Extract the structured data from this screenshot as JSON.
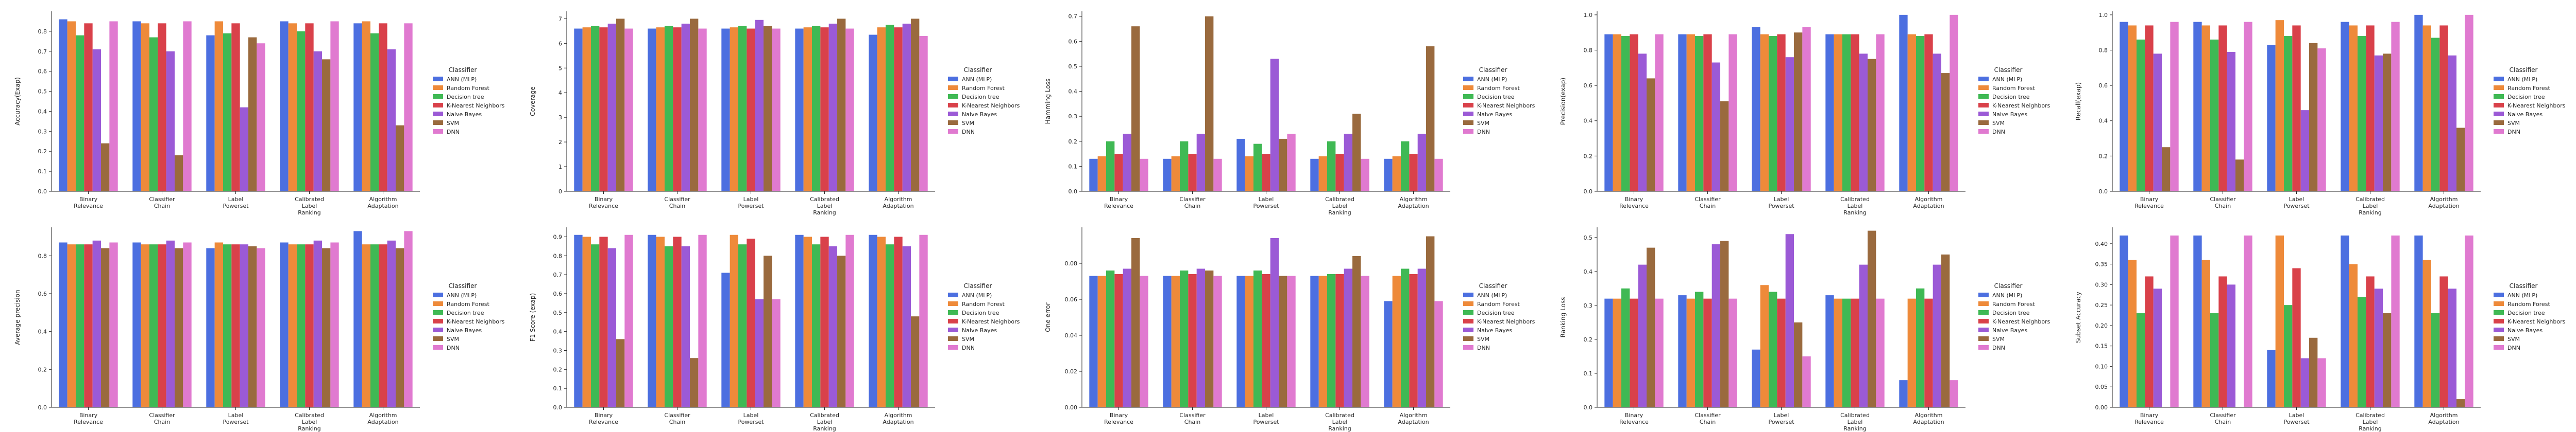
{
  "palette": [
    "#4c6fe0",
    "#ee8a3a",
    "#3fb954",
    "#d9414a",
    "#9b5ad6",
    "#9a6a3e",
    "#e07ad0"
  ],
  "legend": {
    "title": "Classifier",
    "labels": [
      "ANN (MLP)",
      "Random Forest",
      "Decision tree",
      "K-Nearest Neighbors",
      "Naive Bayes",
      "SVM",
      "DNN"
    ]
  },
  "chart_data": [
    {
      "type": "bar",
      "ylabel": "Accuracy(Exap)",
      "ylim": [
        0,
        0.9
      ],
      "yticks": [
        0.0,
        0.1,
        0.2,
        0.3,
        0.4,
        0.5,
        0.6,
        0.7,
        0.8
      ],
      "categories": [
        [
          "Binary",
          "Relevance"
        ],
        [
          "Classifier",
          "Chain"
        ],
        [
          "Label",
          "Powerset"
        ],
        [
          "Calibrated",
          "Label",
          "Ranking"
        ],
        [
          "Algorithm",
          "Adaptation"
        ]
      ],
      "values": [
        [
          0.86,
          0.85,
          0.78,
          0.84,
          0.71,
          0.24,
          0.85
        ],
        [
          0.85,
          0.84,
          0.77,
          0.84,
          0.7,
          0.18,
          0.85
        ],
        [
          0.78,
          0.85,
          0.79,
          0.84,
          0.42,
          0.77,
          0.74
        ],
        [
          0.85,
          0.84,
          0.8,
          0.84,
          0.7,
          0.66,
          0.85
        ],
        [
          0.84,
          0.85,
          0.79,
          0.84,
          0.71,
          0.33,
          0.84
        ]
      ]
    },
    {
      "type": "bar",
      "ylabel": "Coverage",
      "ylim": [
        0,
        7.3
      ],
      "yticks": [
        0,
        1,
        2,
        3,
        4,
        5,
        6,
        7
      ],
      "categories": [
        [
          "Binary",
          "Relevance"
        ],
        [
          "Classifier",
          "Chain"
        ],
        [
          "Label",
          "Powerset"
        ],
        [
          "Calibrated",
          "Label",
          "Ranking"
        ],
        [
          "Algorithm",
          "Adaptation"
        ]
      ],
      "values": [
        [
          6.6,
          6.65,
          6.7,
          6.65,
          6.8,
          7.0,
          6.6
        ],
        [
          6.6,
          6.65,
          6.7,
          6.65,
          6.8,
          7.0,
          6.6
        ],
        [
          6.6,
          6.65,
          6.7,
          6.6,
          6.95,
          6.7,
          6.6
        ],
        [
          6.6,
          6.65,
          6.7,
          6.65,
          6.8,
          7.0,
          6.6
        ],
        [
          6.35,
          6.65,
          6.75,
          6.65,
          6.8,
          7.0,
          6.3
        ]
      ]
    },
    {
      "type": "bar",
      "ylabel": "Hamming Loss",
      "ylim": [
        0,
        0.72
      ],
      "yticks": [
        0.0,
        0.1,
        0.2,
        0.3,
        0.4,
        0.5,
        0.6,
        0.7
      ],
      "categories": [
        [
          "Binary",
          "Relevance"
        ],
        [
          "Classifier",
          "Chain"
        ],
        [
          "Label",
          "Powerset"
        ],
        [
          "Calibrated",
          "Label",
          "Ranking"
        ],
        [
          "Algorithm",
          "Adaptation"
        ]
      ],
      "values": [
        [
          0.13,
          0.14,
          0.2,
          0.15,
          0.23,
          0.66,
          0.13
        ],
        [
          0.13,
          0.14,
          0.2,
          0.15,
          0.23,
          0.7,
          0.13
        ],
        [
          0.21,
          0.14,
          0.19,
          0.15,
          0.53,
          0.21,
          0.23
        ],
        [
          0.13,
          0.14,
          0.2,
          0.15,
          0.23,
          0.31,
          0.13
        ],
        [
          0.13,
          0.14,
          0.2,
          0.15,
          0.23,
          0.58,
          0.13
        ]
      ]
    },
    {
      "type": "bar",
      "ylabel": "Precision(exap)",
      "ylim": [
        0,
        1.02
      ],
      "yticks": [
        0.0,
        0.2,
        0.4,
        0.6,
        0.8,
        1.0
      ],
      "categories": [
        [
          "Binary",
          "Relevance"
        ],
        [
          "Classifier",
          "Chain"
        ],
        [
          "Label",
          "Powerset"
        ],
        [
          "Calibrated",
          "Label",
          "Ranking"
        ],
        [
          "Algorithm",
          "Adaptation"
        ]
      ],
      "values": [
        [
          0.89,
          0.89,
          0.88,
          0.89,
          0.78,
          0.64,
          0.89
        ],
        [
          0.89,
          0.89,
          0.88,
          0.89,
          0.73,
          0.51,
          0.89
        ],
        [
          0.93,
          0.89,
          0.88,
          0.89,
          0.76,
          0.9,
          0.93
        ],
        [
          0.89,
          0.89,
          0.89,
          0.89,
          0.78,
          0.75,
          0.89
        ],
        [
          1.0,
          0.89,
          0.88,
          0.89,
          0.78,
          0.67,
          1.0
        ]
      ]
    },
    {
      "type": "bar",
      "ylabel": "Recall(exap)",
      "ylim": [
        0,
        1.02
      ],
      "yticks": [
        0.0,
        0.2,
        0.4,
        0.6,
        0.8,
        1.0
      ],
      "categories": [
        [
          "Binary",
          "Relevance"
        ],
        [
          "Classifier",
          "Chain"
        ],
        [
          "Label",
          "Powerset"
        ],
        [
          "Calibrated",
          "Label",
          "Ranking"
        ],
        [
          "Algorithm",
          "Adaptation"
        ]
      ],
      "values": [
        [
          0.96,
          0.94,
          0.86,
          0.94,
          0.78,
          0.25,
          0.96
        ],
        [
          0.96,
          0.94,
          0.86,
          0.94,
          0.79,
          0.18,
          0.96
        ],
        [
          0.83,
          0.97,
          0.88,
          0.94,
          0.46,
          0.84,
          0.81
        ],
        [
          0.96,
          0.94,
          0.88,
          0.94,
          0.77,
          0.78,
          0.96
        ],
        [
          1.0,
          0.94,
          0.87,
          0.94,
          0.77,
          0.36,
          1.0
        ]
      ]
    },
    {
      "type": "bar",
      "ylabel": "Average precision",
      "ylim": [
        0,
        0.95
      ],
      "yticks": [
        0.0,
        0.2,
        0.4,
        0.6,
        0.8
      ],
      "categories": [
        [
          "Binary",
          "Relevance"
        ],
        [
          "Classifier",
          "Chain"
        ],
        [
          "Label",
          "Powerset"
        ],
        [
          "Calibrated",
          "Label",
          "Ranking"
        ],
        [
          "Algorithm",
          "Adaptation"
        ]
      ],
      "values": [
        [
          0.87,
          0.86,
          0.86,
          0.86,
          0.88,
          0.84,
          0.87
        ],
        [
          0.87,
          0.86,
          0.86,
          0.86,
          0.88,
          0.84,
          0.87
        ],
        [
          0.84,
          0.87,
          0.86,
          0.86,
          0.86,
          0.85,
          0.84
        ],
        [
          0.87,
          0.86,
          0.86,
          0.86,
          0.88,
          0.84,
          0.87
        ],
        [
          0.93,
          0.86,
          0.86,
          0.86,
          0.88,
          0.84,
          0.93
        ]
      ]
    },
    {
      "type": "bar",
      "ylabel": "F1 Score (exap)",
      "ylim": [
        0,
        0.95
      ],
      "yticks": [
        0.0,
        0.1,
        0.2,
        0.3,
        0.4,
        0.5,
        0.6,
        0.7,
        0.8,
        0.9
      ],
      "categories": [
        [
          "Binary",
          "Relevance"
        ],
        [
          "Classifier",
          "Chain"
        ],
        [
          "Label",
          "Powerset"
        ],
        [
          "Calibrated",
          "Label",
          "Ranking"
        ],
        [
          "Algorithm",
          "Adaptation"
        ]
      ],
      "values": [
        [
          0.91,
          0.9,
          0.86,
          0.9,
          0.84,
          0.36,
          0.91
        ],
        [
          0.91,
          0.9,
          0.85,
          0.9,
          0.85,
          0.26,
          0.91
        ],
        [
          0.71,
          0.91,
          0.86,
          0.89,
          0.57,
          0.8,
          0.57
        ],
        [
          0.91,
          0.9,
          0.86,
          0.9,
          0.85,
          0.8,
          0.91
        ],
        [
          0.91,
          0.9,
          0.86,
          0.9,
          0.85,
          0.48,
          0.91
        ]
      ]
    },
    {
      "type": "bar",
      "ylabel": "One error",
      "ylim": [
        0,
        0.1
      ],
      "yticks": [
        0.0,
        0.02,
        0.04,
        0.06,
        0.08
      ],
      "categories": [
        [
          "Binary",
          "Relevance"
        ],
        [
          "Classifier",
          "Chain"
        ],
        [
          "Label",
          "Powerset"
        ],
        [
          "Calibrated",
          "Label",
          "Ranking"
        ],
        [
          "Algorithm",
          "Adaptation"
        ]
      ],
      "values": [
        [
          0.073,
          0.073,
          0.076,
          0.074,
          0.077,
          0.094,
          0.073
        ],
        [
          0.073,
          0.073,
          0.076,
          0.074,
          0.077,
          0.076,
          0.073
        ],
        [
          0.073,
          0.073,
          0.076,
          0.074,
          0.094,
          0.073,
          0.073
        ],
        [
          0.073,
          0.073,
          0.074,
          0.074,
          0.077,
          0.084,
          0.073
        ],
        [
          0.059,
          0.073,
          0.077,
          0.074,
          0.077,
          0.095,
          0.059
        ]
      ]
    },
    {
      "type": "bar",
      "ylabel": "Ranking Loss",
      "ylim": [
        0,
        0.53
      ],
      "yticks": [
        0.0,
        0.1,
        0.2,
        0.3,
        0.4,
        0.5
      ],
      "categories": [
        [
          "Binary",
          "Relevance"
        ],
        [
          "Classifier",
          "Chain"
        ],
        [
          "Label",
          "Powerset"
        ],
        [
          "Calibrated",
          "Label",
          "Ranking"
        ],
        [
          "Algorithm",
          "Adaptation"
        ]
      ],
      "values": [
        [
          0.32,
          0.32,
          0.35,
          0.32,
          0.42,
          0.47,
          0.32
        ],
        [
          0.33,
          0.32,
          0.34,
          0.32,
          0.48,
          0.49,
          0.32
        ],
        [
          0.17,
          0.36,
          0.34,
          0.32,
          0.51,
          0.25,
          0.15
        ],
        [
          0.33,
          0.32,
          0.32,
          0.32,
          0.42,
          0.52,
          0.32
        ],
        [
          0.08,
          0.32,
          0.35,
          0.32,
          0.42,
          0.45,
          0.08
        ]
      ]
    },
    {
      "type": "bar",
      "ylabel": "Subset Accuracy",
      "ylim": [
        0,
        0.44
      ],
      "yticks": [
        0.0,
        0.05,
        0.1,
        0.15,
        0.2,
        0.25,
        0.3,
        0.35,
        0.4
      ],
      "categories": [
        [
          "Binary",
          "Relevance"
        ],
        [
          "Classifier",
          "Chain"
        ],
        [
          "Label",
          "Powerset"
        ],
        [
          "Calibrated",
          "Label",
          "Ranking"
        ],
        [
          "Algorithm",
          "Adaptation"
        ]
      ],
      "values": [
        [
          0.42,
          0.36,
          0.23,
          0.32,
          0.29,
          0.0,
          0.42
        ],
        [
          0.42,
          0.36,
          0.23,
          0.32,
          0.3,
          0.0,
          0.42
        ],
        [
          0.14,
          0.42,
          0.25,
          0.34,
          0.12,
          0.17,
          0.12
        ],
        [
          0.42,
          0.35,
          0.27,
          0.32,
          0.29,
          0.23,
          0.42
        ],
        [
          0.42,
          0.36,
          0.23,
          0.32,
          0.29,
          0.02,
          0.42
        ]
      ]
    }
  ]
}
